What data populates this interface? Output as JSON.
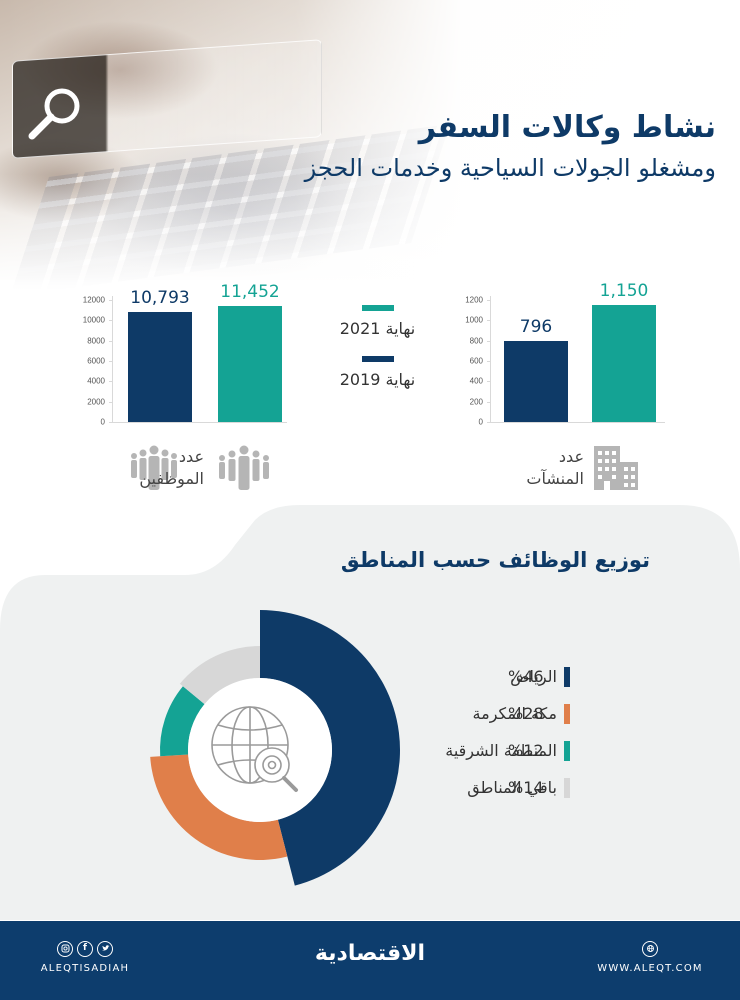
{
  "header": {
    "title": "نشاط وكالات السفر",
    "subtitle": "ومشغلو الجولات السياحية وخدمات الحجز"
  },
  "legend": [
    {
      "label": "نهاية 2021",
      "color": "#14a394"
    },
    {
      "label": "نهاية 2019",
      "color": "#0e3a67"
    }
  ],
  "employees": {
    "label_line1": "عدد",
    "label_line2": "الموظفين",
    "icon": "people-group-icon"
  },
  "establishments": {
    "label_line1": "عدد",
    "label_line2": "المنشآت",
    "icon": "building-icon"
  },
  "regions": {
    "title": "توزيع الوظائف حسب المناطق",
    "center_icon": "globe-gear-search-icon",
    "items": [
      {
        "name": "الرياض",
        "pct": "%46",
        "color": "#0e3a67"
      },
      {
        "name": "مكة المكرمة",
        "pct": "%28",
        "color": "#e07f4a"
      },
      {
        "name": "المنطقة الشرقية",
        "pct": "%12",
        "color": "#14a394"
      },
      {
        "name": "باقي المناطق",
        "pct": "%14",
        "color": "#d7d7d7"
      }
    ]
  },
  "footer": {
    "social_handle": "ALEQTISADIAH",
    "social_icons": [
      "instagram-icon",
      "facebook-icon",
      "twitter-icon"
    ],
    "logo": "الاقتصادية",
    "website": "WWW.ALEQT.COM",
    "web_icon": "globe-icon"
  },
  "colors": {
    "navy": "#0e3a67",
    "teal": "#14a394",
    "orange": "#e07f4a",
    "gray": "#d7d7d7",
    "footer_bg": "#0d3d6d",
    "section_bg": "#eff1f1"
  },
  "chart_data": [
    {
      "type": "bar",
      "title": "عدد الموظفين",
      "categories": [
        "نهاية 2019",
        "نهاية 2021"
      ],
      "values": [
        10793,
        11452
      ],
      "value_labels": [
        "10,793",
        "11,452"
      ],
      "colors": [
        "#0e3a67",
        "#14a394"
      ],
      "yticks": [
        "0",
        "2000",
        "4000",
        "6000",
        "8000",
        "10000",
        "12000"
      ],
      "ylim": [
        0,
        12000
      ],
      "grid": false
    },
    {
      "type": "bar",
      "title": "عدد المنشآت",
      "categories": [
        "نهاية 2019",
        "نهاية 2021"
      ],
      "values": [
        796,
        1150
      ],
      "value_labels": [
        "796",
        "1,150"
      ],
      "colors": [
        "#0e3a67",
        "#14a394"
      ],
      "yticks": [
        "0",
        "200",
        "400",
        "600",
        "800",
        "1000",
        "1200"
      ],
      "ylim": [
        0,
        1200
      ],
      "grid": false
    },
    {
      "type": "pie",
      "title": "توزيع الوظائف حسب المناطق",
      "categories": [
        "الرياض",
        "مكة المكرمة",
        "المنطقة الشرقية",
        "باقي المناطق"
      ],
      "values": [
        46,
        28,
        12,
        14
      ],
      "colors": [
        "#0e3a67",
        "#e07f4a",
        "#14a394",
        "#d7d7d7"
      ],
      "unit": "%"
    }
  ]
}
